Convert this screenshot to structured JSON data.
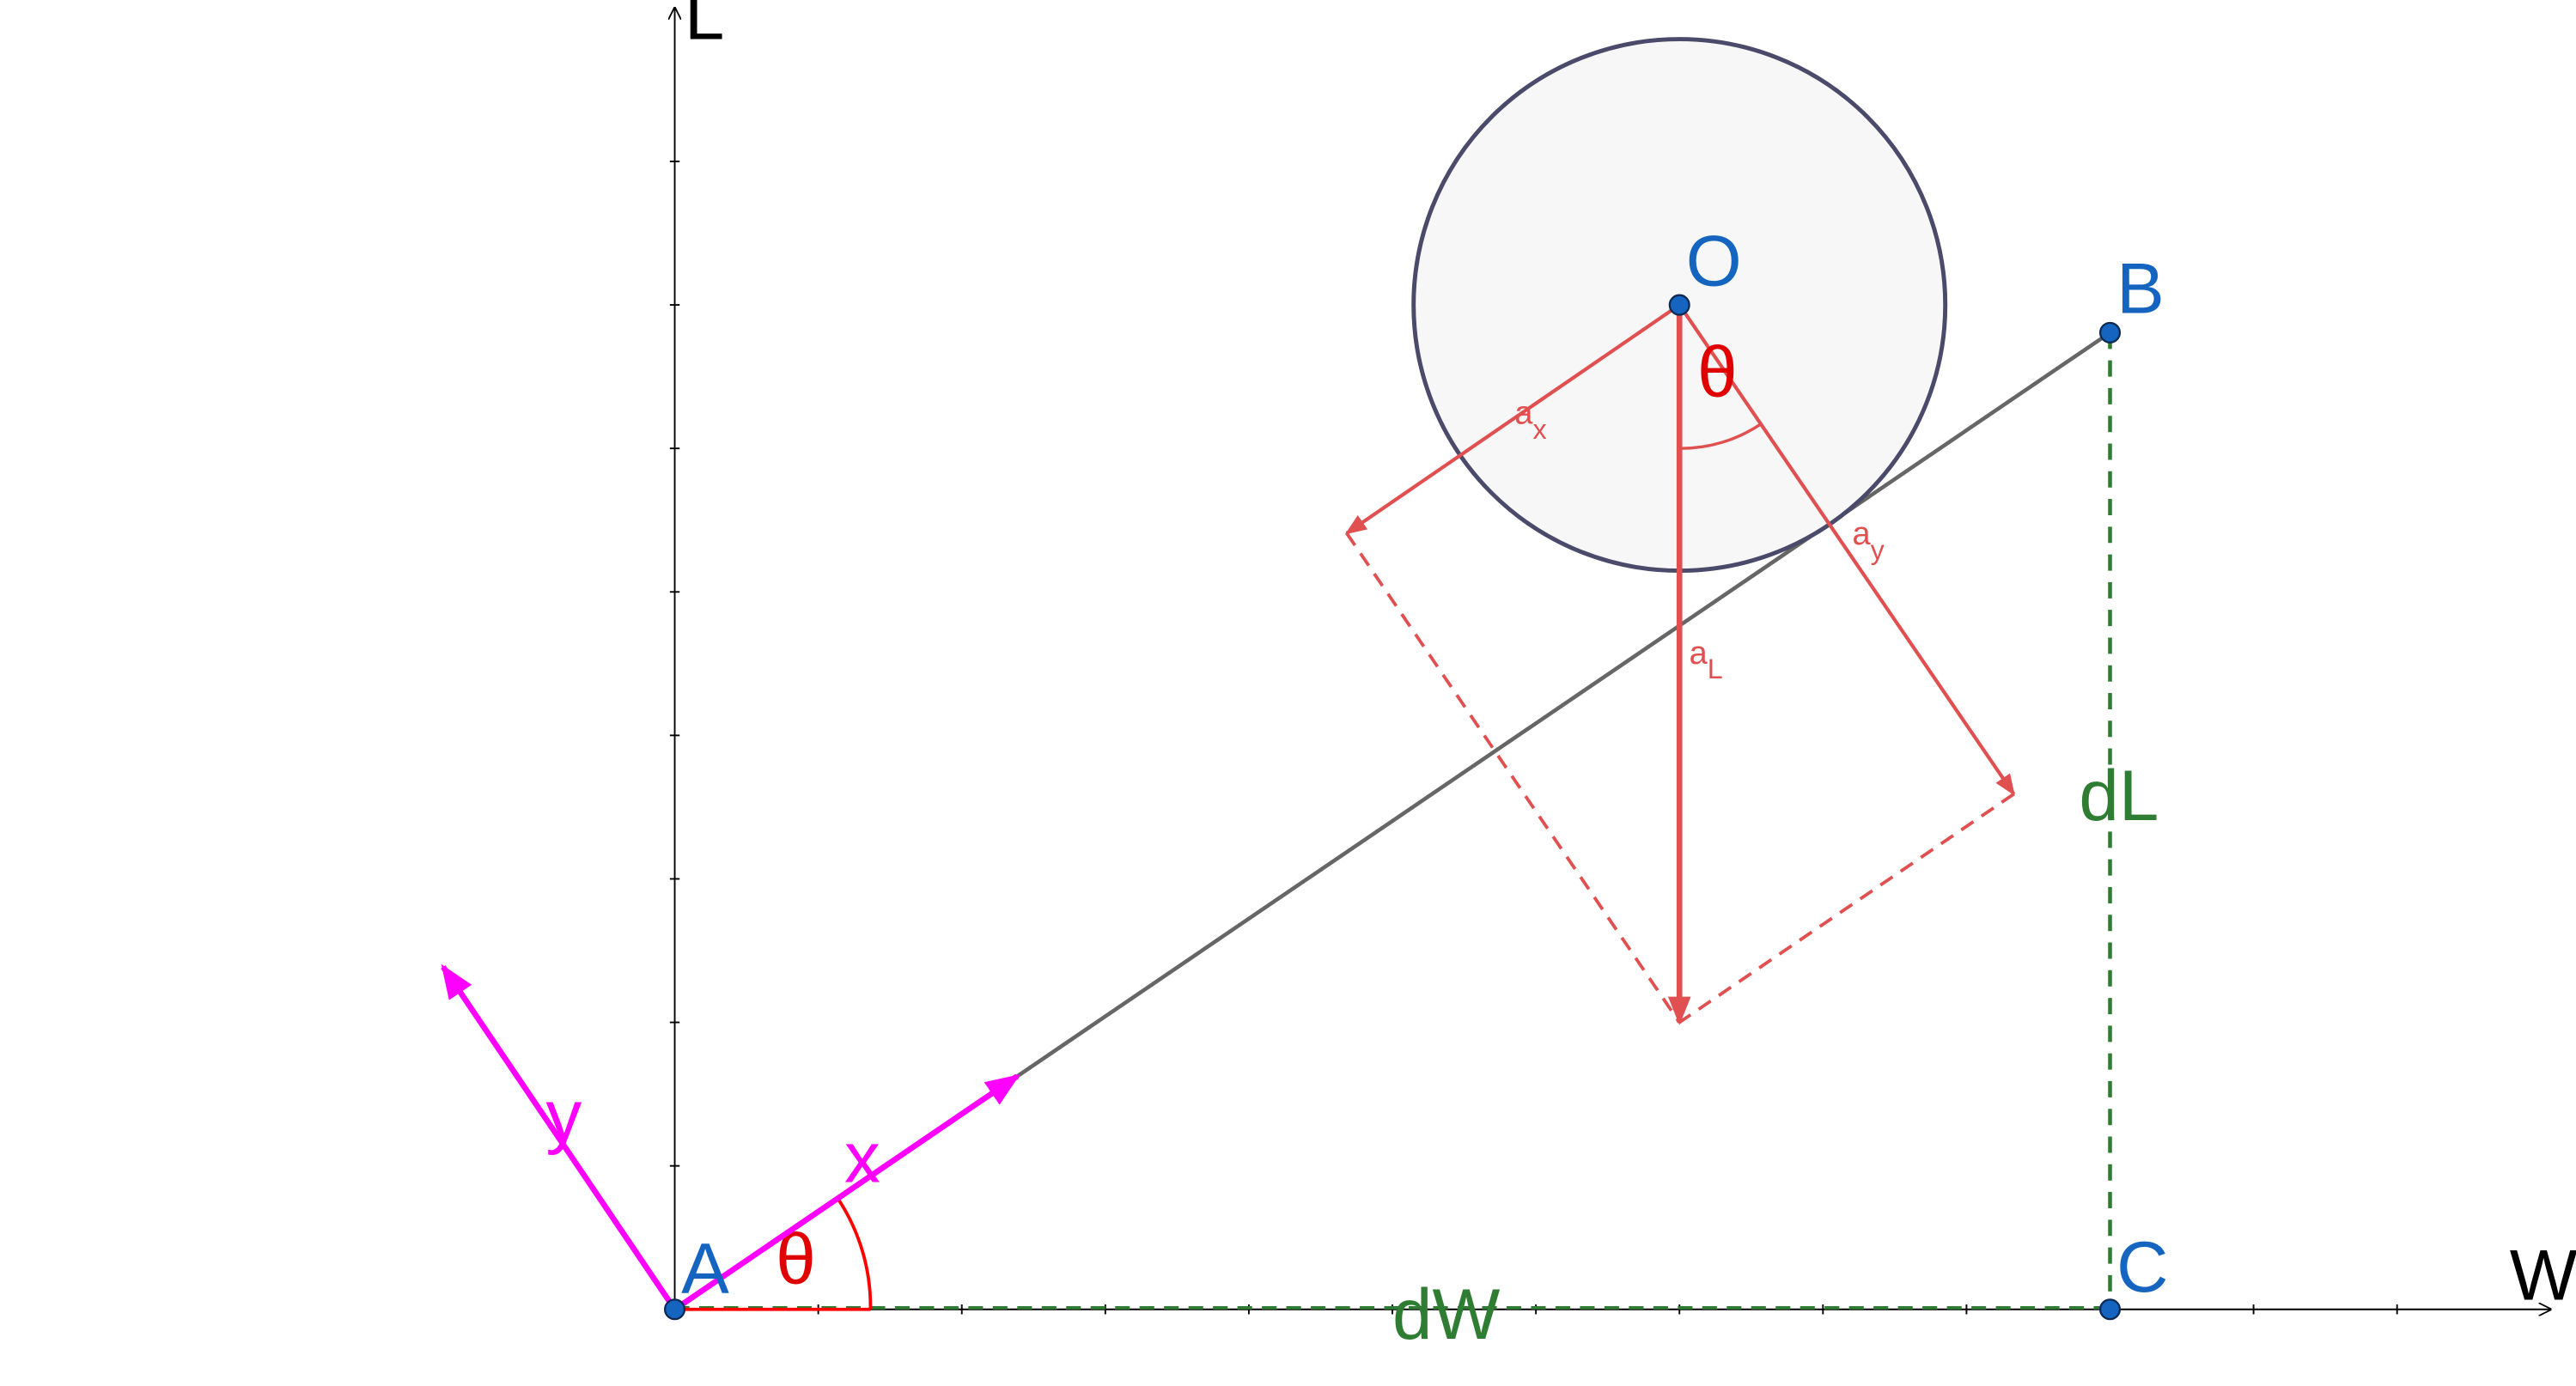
{
  "axes": {
    "vertical_label": "L",
    "horizontal_label": "W"
  },
  "points": {
    "A": "A",
    "B": "B",
    "C": "C",
    "O": "O"
  },
  "measures": {
    "dW": "dW",
    "dL": "dL"
  },
  "angles": {
    "theta_base": "θ",
    "theta_ball": "θ"
  },
  "local_axes": {
    "x": "x",
    "y": "y"
  },
  "vectors": {
    "aL": {
      "main": "a",
      "sub": "L"
    },
    "ax": {
      "main": "a",
      "sub": "x"
    },
    "ay": {
      "main": "a",
      "sub": "y"
    }
  },
  "colors": {
    "axis": "#000000",
    "incline": "#666666",
    "ball_stroke": "#4a4a6a",
    "ball_fill": "#f7f7f7",
    "point": "#1565c0",
    "point_label": "#1565c0",
    "vector_red": "#e05050",
    "angle_red": "#ff0000",
    "magenta": "#ff00ff",
    "green": "#2e7d32"
  }
}
